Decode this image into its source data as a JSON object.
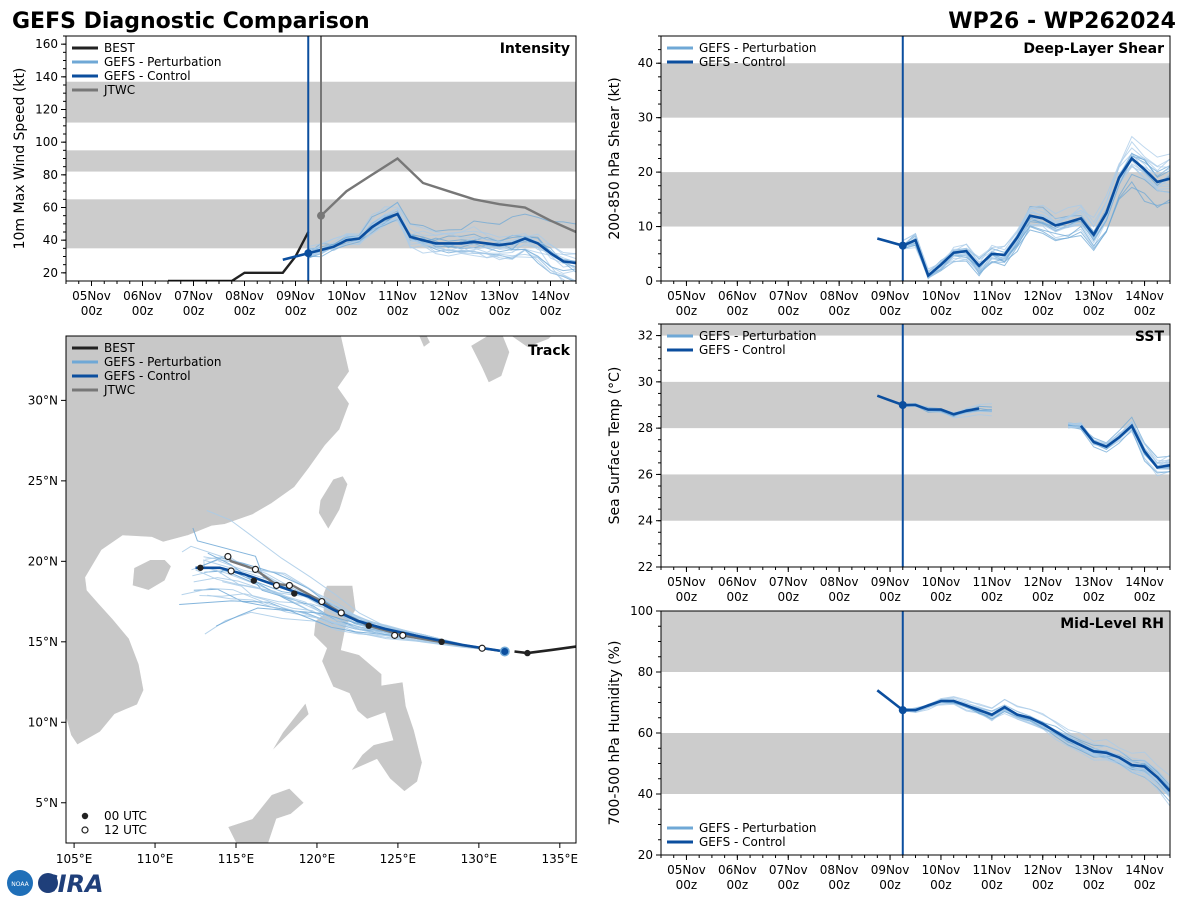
{
  "header": {
    "left_title": "GEFS Diagnostic Comparison",
    "right_title": "WP26 - WP262024"
  },
  "logo": {
    "text": "CIRA",
    "seal_text": "NOAA"
  },
  "colors": {
    "best": "#222222",
    "perturbation": "#6fa8d6",
    "control": "#0b4e9e",
    "jtwc": "#777777",
    "band": "#cccccc",
    "land": "#c8c8c8",
    "vline_control": "#0b4e9e",
    "vline_jtwc": "#777777"
  },
  "time_ticks": [
    {
      "d": 0,
      "l1": "05Nov",
      "l2": "00z"
    },
    {
      "d": 1,
      "l1": "06Nov",
      "l2": "00z"
    },
    {
      "d": 2,
      "l1": "07Nov",
      "l2": "00z"
    },
    {
      "d": 3,
      "l1": "08Nov",
      "l2": "00z"
    },
    {
      "d": 4,
      "l1": "09Nov",
      "l2": "00z"
    },
    {
      "d": 5,
      "l1": "10Nov",
      "l2": "00z"
    },
    {
      "d": 6,
      "l1": "11Nov",
      "l2": "00z"
    },
    {
      "d": 7,
      "l1": "12Nov",
      "l2": "00z"
    },
    {
      "d": 8,
      "l1": "13Nov",
      "l2": "00z"
    },
    {
      "d": 9,
      "l1": "14Nov",
      "l2": "00z"
    }
  ],
  "chart_data": [
    {
      "id": "intensity",
      "type": "line",
      "title": "Intensity",
      "ylabel": "10m Max Wind Speed (kt)",
      "xlim": [
        -0.5,
        9.5
      ],
      "ylim": [
        15,
        165
      ],
      "yticks": [
        20,
        40,
        60,
        80,
        100,
        120,
        140,
        160
      ],
      "bands": [
        [
          35,
          65
        ],
        [
          82,
          95
        ],
        [
          112,
          137
        ]
      ],
      "vlines": [
        {
          "x": 4.25,
          "series": "control"
        },
        {
          "x": 4.5,
          "series": "jtwc"
        }
      ],
      "legend": [
        "BEST",
        "GEFS - Perturbation",
        "GEFS - Control",
        "JTWC"
      ],
      "series": [
        {
          "name": "BEST",
          "key": "best",
          "x": [
            1.5,
            2.0,
            2.5,
            2.75,
            3.0,
            3.5,
            3.75,
            4.0,
            4.25
          ],
          "y": [
            15,
            15,
            15,
            15,
            20,
            20,
            20,
            30,
            45
          ]
        },
        {
          "name": "JTWC",
          "key": "jtwc",
          "x": [
            4.5,
            5.0,
            5.5,
            6.0,
            6.5,
            7.0,
            7.5,
            8.0,
            8.5,
            9.0,
            9.5
          ],
          "y": [
            55,
            70,
            80,
            90,
            75,
            70,
            65,
            62,
            60,
            52,
            45
          ]
        },
        {
          "name": "GEFS - Control",
          "key": "control",
          "x": [
            3.75,
            4.0,
            4.25,
            4.5,
            4.75,
            5.0,
            5.25,
            5.5,
            5.75,
            6.0,
            6.25,
            6.5,
            6.75,
            7.0,
            7.25,
            7.5,
            7.75,
            8.0,
            8.25,
            8.5,
            8.75,
            9.0,
            9.25,
            9.5
          ],
          "y": [
            28,
            30,
            32,
            34,
            36,
            40,
            41,
            48,
            53,
            56,
            42,
            40,
            38,
            38,
            38,
            39,
            38,
            37,
            38,
            41,
            38,
            32,
            27,
            26
          ]
        }
      ],
      "perturbation": {
        "start": 4.25,
        "end": 9.5,
        "count": 20,
        "spread": 12
      }
    },
    {
      "id": "shear",
      "type": "line",
      "title": "Deep-Layer Shear",
      "ylabel": "200-850 hPa Shear (kt)",
      "xlim": [
        -0.5,
        9.5
      ],
      "ylim": [
        0,
        45
      ],
      "yticks": [
        0,
        10,
        20,
        30,
        40
      ],
      "bands": [
        [
          10,
          20
        ],
        [
          30,
          40
        ]
      ],
      "vlines": [
        {
          "x": 4.25,
          "series": "control"
        }
      ],
      "legend": [
        "GEFS - Perturbation",
        "GEFS - Control"
      ],
      "series": [
        {
          "name": "GEFS - Control",
          "key": "control",
          "x": [
            3.75,
            4.25,
            4.5,
            4.75,
            5.0,
            5.25,
            5.5,
            5.75,
            6.0,
            6.25,
            6.5,
            6.75,
            7.0,
            7.25,
            7.5,
            7.75,
            8.0,
            8.25,
            8.5,
            8.75,
            9.0,
            9.25,
            9.5
          ],
          "y": [
            7.8,
            6.5,
            7.5,
            1.0,
            3.0,
            5.2,
            5.5,
            2.8,
            5.0,
            4.8,
            8.0,
            12.0,
            11.5,
            10.2,
            10.8,
            11.5,
            8.5,
            12.5,
            19.0,
            22.5,
            20.5,
            18.2,
            18.8
          ]
        }
      ],
      "perturbation": {
        "start": 4.25,
        "end": 9.5,
        "count": 20,
        "spread": 4
      }
    },
    {
      "id": "sst",
      "type": "line",
      "title": "SST",
      "ylabel": "Sea Surface Temp (°C)",
      "xlim": [
        -0.5,
        9.5
      ],
      "ylim": [
        22,
        32.5
      ],
      "yticks": [
        22,
        24,
        26,
        28,
        30,
        32
      ],
      "bands": [
        [
          24,
          26
        ],
        [
          28,
          30
        ],
        [
          32,
          32.5
        ]
      ],
      "vlines": [
        {
          "x": 4.25,
          "series": "control"
        }
      ],
      "legend": [
        "GEFS - Perturbation",
        "GEFS - Control"
      ],
      "series": [
        {
          "name": "GEFS - Control",
          "key": "control",
          "x": [
            3.75,
            4.25,
            4.5,
            4.75,
            5.0,
            5.25,
            5.5,
            5.75
          ],
          "y": [
            29.4,
            29.0,
            29.0,
            28.8,
            28.8,
            28.6,
            28.75,
            28.85
          ]
        },
        {
          "name": "GEFS - Control",
          "key": "control",
          "x": [
            7.75,
            8.0,
            8.25,
            8.5,
            8.75,
            9.0,
            9.25,
            9.5
          ],
          "y": [
            28.1,
            27.4,
            27.2,
            27.6,
            28.1,
            27.0,
            26.3,
            26.4
          ]
        }
      ],
      "perturbation_segments": [
        {
          "start": 4.25,
          "end": 6.0,
          "count": 10,
          "spread": 0.3
        },
        {
          "start": 7.5,
          "end": 9.5,
          "count": 18,
          "spread": 0.5
        }
      ]
    },
    {
      "id": "rh",
      "type": "line",
      "title": "Mid-Level RH",
      "ylabel": "700-500 hPa Humidity (%)",
      "xlim": [
        -0.5,
        9.5
      ],
      "ylim": [
        20,
        100
      ],
      "yticks": [
        20,
        40,
        60,
        80,
        100
      ],
      "bands": [
        [
          40,
          60
        ],
        [
          80,
          100
        ]
      ],
      "vlines": [
        {
          "x": 4.25,
          "series": "control"
        }
      ],
      "legend": [
        "GEFS - Perturbation",
        "GEFS - Control"
      ],
      "series": [
        {
          "name": "GEFS - Control",
          "key": "control",
          "x": [
            3.75,
            4.25,
            4.5,
            4.75,
            5.0,
            5.25,
            5.5,
            5.75,
            6.0,
            6.25,
            6.5,
            6.75,
            7.0,
            7.25,
            7.5,
            7.75,
            8.0,
            8.25,
            8.5,
            8.75,
            9.0,
            9.25,
            9.5
          ],
          "y": [
            74,
            67.5,
            67.5,
            69,
            70.5,
            70.5,
            69,
            67.5,
            66,
            68.5,
            66,
            65,
            63,
            60.5,
            58,
            56,
            54,
            53.5,
            52,
            49.5,
            49,
            45.5,
            41
          ]
        }
      ],
      "perturbation": {
        "start": 4.25,
        "end": 9.5,
        "count": 20,
        "spread": 3
      }
    },
    {
      "id": "track",
      "type": "line",
      "title": "Track",
      "lon_range": [
        104.5,
        136
      ],
      "lat_range": [
        2.5,
        34
      ],
      "lon_ticks": [
        105,
        110,
        115,
        120,
        125,
        130,
        135
      ],
      "lat_ticks": [
        5,
        10,
        15,
        20,
        25,
        30
      ],
      "lon_tick_labels": [
        "105°E",
        "110°E",
        "115°E",
        "120°E",
        "125°E",
        "130°E",
        "135°E"
      ],
      "lat_tick_labels": [
        "5°N",
        "10°N",
        "15°N",
        "20°N",
        "25°N",
        "30°N"
      ],
      "legend": [
        "BEST",
        "GEFS - Perturbation",
        "GEFS - Control",
        "JTWC"
      ],
      "marker_legend": [
        "00 UTC",
        "12 UTC"
      ],
      "series": [
        {
          "name": "BEST",
          "key": "best",
          "lon": [
            136,
            134.5,
            133,
            132.2
          ],
          "lat": [
            14.7,
            14.5,
            14.3,
            14.4
          ]
        },
        {
          "name": "JTWC",
          "key": "jtwc",
          "lon": [
            131.6,
            130.2,
            127.6,
            125.3,
            123.2,
            121.5,
            120.3,
            118.5,
            117.4,
            116.2,
            114.7,
            114.5
          ],
          "lat": [
            14.4,
            14.6,
            15.0,
            15.4,
            16.0,
            16.8,
            17.5,
            18.5,
            18.6,
            19.5,
            20.0,
            20.3
          ]
        },
        {
          "name": "GEFS - Control",
          "key": "control",
          "lon": [
            131.6,
            129.0,
            126.5,
            124.2,
            122.5,
            121.0,
            119.5,
            117.5,
            115.5,
            114.0,
            112.5
          ],
          "lat": [
            14.4,
            14.8,
            15.3,
            15.8,
            16.3,
            17.0,
            17.8,
            18.5,
            19.2,
            19.6,
            19.6
          ]
        }
      ],
      "markers_00": {
        "lon": [
          127.7,
          123.2,
          118.6,
          116.1,
          112.8,
          133.0
        ],
        "lat": [
          15.0,
          16.0,
          18.0,
          18.8,
          19.6,
          14.3
        ]
      },
      "markers_12": {
        "lon": [
          130.2,
          125.3,
          120.3,
          117.5,
          114.7,
          121.5,
          118.3,
          116.2,
          114.5,
          124.8
        ],
        "lat": [
          14.6,
          15.4,
          17.5,
          18.5,
          19.4,
          16.8,
          18.5,
          19.5,
          20.3,
          15.4
        ]
      },
      "perturbation": {
        "count": 24
      }
    }
  ]
}
